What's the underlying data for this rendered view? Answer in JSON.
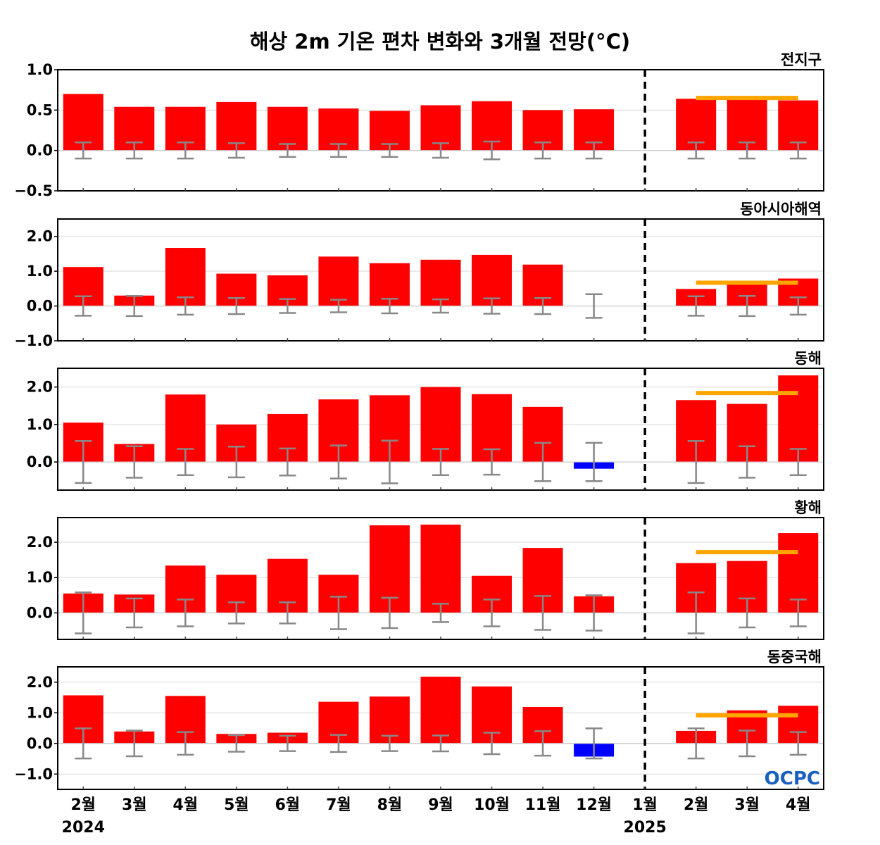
{
  "title": "해상 2m 기온 편차 변화와 3개월 전망(°C)",
  "logo": "OCPC",
  "colors": {
    "positive": "#ff0000",
    "negative": "#0000ff",
    "forecast_line": "#ffa500",
    "error_bar": "#888888",
    "separator": "#000000"
  },
  "chart_data": {
    "type": "bar",
    "categories": [
      "2월",
      "3월",
      "4월",
      "5월",
      "6월",
      "7월",
      "8월",
      "9월",
      "10월",
      "11월",
      "12월",
      "1월",
      "2월",
      "3월",
      "4월"
    ],
    "years": [
      "2024",
      "2025"
    ],
    "panels": [
      {
        "label": "전지구",
        "ylim": [
          -0.5,
          1.0
        ],
        "yticks": [
          -0.5,
          0.0,
          0.5,
          1.0
        ],
        "ytick_labels": [
          "−0.5",
          "0.0",
          "0.5",
          "1.0"
        ],
        "values": [
          0.7,
          0.54,
          0.54,
          0.6,
          0.54,
          0.52,
          0.49,
          0.56,
          0.61,
          0.5,
          0.51,
          null,
          0.64,
          0.67,
          0.62
        ],
        "spread": [
          0.1,
          0.1,
          0.1,
          0.09,
          0.08,
          0.08,
          0.08,
          0.09,
          0.11,
          0.1,
          0.1,
          null,
          0.1,
          0.1,
          0.1
        ],
        "forecast_mean": 0.65
      },
      {
        "label": "동아시아해역",
        "ylim": [
          -1.0,
          2.5
        ],
        "yticks": [
          -1.0,
          0.0,
          1.0,
          2.0
        ],
        "ytick_labels": [
          "−1.0",
          "0.0",
          "1.0",
          "2.0"
        ],
        "values": [
          1.12,
          0.3,
          1.67,
          0.93,
          0.88,
          1.42,
          1.23,
          1.33,
          1.47,
          1.19,
          0.0,
          null,
          0.49,
          0.67,
          0.79
        ],
        "spread": [
          0.28,
          0.29,
          0.25,
          0.23,
          0.2,
          0.18,
          0.21,
          0.19,
          0.22,
          0.23,
          0.34,
          null,
          0.28,
          0.29,
          0.25
        ],
        "forecast_mean": 0.67
      },
      {
        "label": "동해",
        "ylim": [
          -0.75,
          2.5
        ],
        "yticks": [
          0.0,
          1.0,
          2.0
        ],
        "ytick_labels": [
          "0.0",
          "1.0",
          "2.0"
        ],
        "values": [
          1.05,
          0.48,
          1.8,
          1.0,
          1.28,
          1.67,
          1.78,
          2.0,
          1.81,
          1.47,
          -0.18,
          null,
          1.65,
          1.55,
          2.31
        ],
        "spread": [
          0.56,
          0.42,
          0.35,
          0.41,
          0.36,
          0.44,
          0.57,
          0.35,
          0.34,
          0.51,
          0.51,
          null,
          0.56,
          0.42,
          0.35
        ],
        "forecast_mean": 1.84
      },
      {
        "label": "황해",
        "ylim": [
          -0.75,
          2.7
        ],
        "yticks": [
          0.0,
          1.0,
          2.0
        ],
        "ytick_labels": [
          "0.0",
          "1.0",
          "2.0"
        ],
        "values": [
          0.55,
          0.52,
          1.34,
          1.08,
          1.53,
          1.08,
          2.48,
          2.5,
          1.05,
          1.84,
          0.47,
          null,
          1.41,
          1.47,
          2.26
        ],
        "spread": [
          0.58,
          0.41,
          0.38,
          0.3,
          0.3,
          0.46,
          0.43,
          0.26,
          0.38,
          0.48,
          0.5,
          null,
          0.58,
          0.41,
          0.38
        ],
        "forecast_mean": 1.72
      },
      {
        "label": "동중국해",
        "ylim": [
          -1.5,
          2.5
        ],
        "yticks": [
          -1.0,
          0.0,
          1.0,
          2.0
        ],
        "ytick_labels": [
          "−1.0",
          "0.0",
          "1.0",
          "2.0"
        ],
        "values": [
          1.57,
          0.39,
          1.55,
          0.31,
          0.35,
          1.36,
          1.53,
          2.18,
          1.86,
          1.19,
          -0.43,
          null,
          0.41,
          1.08,
          1.23
        ],
        "spread": [
          0.49,
          0.42,
          0.37,
          0.27,
          0.25,
          0.28,
          0.25,
          0.26,
          0.35,
          0.4,
          0.49,
          null,
          0.49,
          0.42,
          0.37
        ],
        "forecast_mean": 0.92
      }
    ]
  }
}
